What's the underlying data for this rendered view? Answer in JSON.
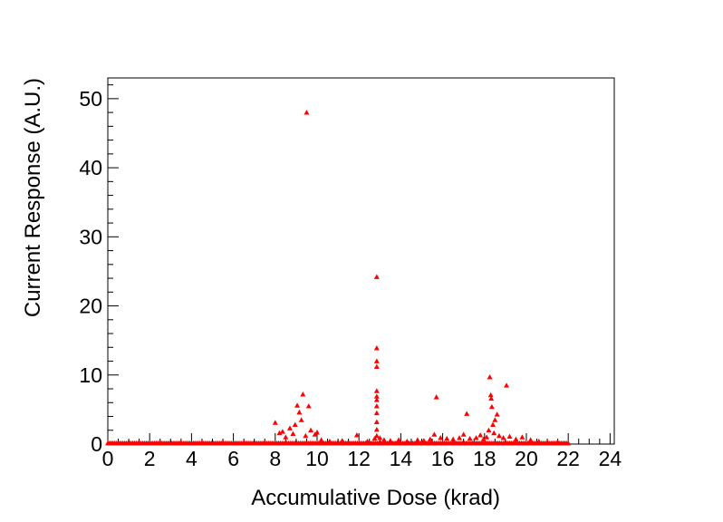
{
  "chart_data": {
    "type": "scatter",
    "title": "",
    "xlabel": "Accumulative Dose (krad)",
    "ylabel": "Current Response (A.U.)",
    "xlim": [
      0,
      24.2
    ],
    "ylim": [
      0,
      53
    ],
    "x_ticks": [
      "0",
      "2",
      "4",
      "6",
      "8",
      "10",
      "12",
      "14",
      "16",
      "18",
      "20",
      "22",
      "24"
    ],
    "y_ticks": [
      "0",
      "10",
      "20",
      "30",
      "40",
      "50"
    ],
    "grid": false,
    "legend": "none",
    "marker": "triangle",
    "marker_color": "#ff0000",
    "baseline": {
      "y": 0,
      "x_start": 0,
      "x_end": 22
    },
    "points": [
      {
        "x": 8.0,
        "y": 3.1
      },
      {
        "x": 8.2,
        "y": 1.6
      },
      {
        "x": 8.35,
        "y": 1.8
      },
      {
        "x": 8.5,
        "y": 1.0
      },
      {
        "x": 8.7,
        "y": 2.3
      },
      {
        "x": 8.85,
        "y": 1.5
      },
      {
        "x": 8.95,
        "y": 2.8
      },
      {
        "x": 9.05,
        "y": 5.6
      },
      {
        "x": 9.15,
        "y": 4.6
      },
      {
        "x": 9.25,
        "y": 3.5
      },
      {
        "x": 9.32,
        "y": 7.2
      },
      {
        "x": 9.45,
        "y": 1.2
      },
      {
        "x": 9.5,
        "y": 48.0
      },
      {
        "x": 9.6,
        "y": 5.5
      },
      {
        "x": 9.7,
        "y": 2.0
      },
      {
        "x": 9.9,
        "y": 1.4
      },
      {
        "x": 10.0,
        "y": 1.7
      },
      {
        "x": 10.2,
        "y": 0.6
      },
      {
        "x": 10.6,
        "y": 0.4
      },
      {
        "x": 11.2,
        "y": 0.5
      },
      {
        "x": 11.9,
        "y": 1.3
      },
      {
        "x": 12.4,
        "y": 0.4
      },
      {
        "x": 12.75,
        "y": 0.8
      },
      {
        "x": 12.85,
        "y": 24.2
      },
      {
        "x": 12.85,
        "y": 13.9
      },
      {
        "x": 12.85,
        "y": 12.0
      },
      {
        "x": 12.85,
        "y": 11.2
      },
      {
        "x": 12.85,
        "y": 7.7
      },
      {
        "x": 12.85,
        "y": 6.9
      },
      {
        "x": 12.85,
        "y": 6.4
      },
      {
        "x": 12.85,
        "y": 5.5
      },
      {
        "x": 12.85,
        "y": 4.5
      },
      {
        "x": 12.85,
        "y": 3.2
      },
      {
        "x": 12.85,
        "y": 2.1
      },
      {
        "x": 12.85,
        "y": 1.2
      },
      {
        "x": 13.0,
        "y": 0.9
      },
      {
        "x": 13.2,
        "y": 0.6
      },
      {
        "x": 13.5,
        "y": 0.5
      },
      {
        "x": 13.9,
        "y": 0.6
      },
      {
        "x": 14.3,
        "y": 0.4
      },
      {
        "x": 14.8,
        "y": 0.6
      },
      {
        "x": 15.1,
        "y": 0.5
      },
      {
        "x": 15.4,
        "y": 0.7
      },
      {
        "x": 15.6,
        "y": 1.4
      },
      {
        "x": 15.7,
        "y": 6.8
      },
      {
        "x": 15.9,
        "y": 0.9
      },
      {
        "x": 16.2,
        "y": 0.8
      },
      {
        "x": 16.5,
        "y": 0.7
      },
      {
        "x": 16.8,
        "y": 0.9
      },
      {
        "x": 17.0,
        "y": 1.4
      },
      {
        "x": 17.15,
        "y": 4.4
      },
      {
        "x": 17.3,
        "y": 0.8
      },
      {
        "x": 17.6,
        "y": 0.9
      },
      {
        "x": 17.8,
        "y": 1.3
      },
      {
        "x": 17.95,
        "y": 0.7
      },
      {
        "x": 18.1,
        "y": 1.0
      },
      {
        "x": 18.2,
        "y": 2.0
      },
      {
        "x": 18.25,
        "y": 9.7
      },
      {
        "x": 18.3,
        "y": 7.1
      },
      {
        "x": 18.32,
        "y": 6.6
      },
      {
        "x": 18.35,
        "y": 5.4
      },
      {
        "x": 18.4,
        "y": 2.8
      },
      {
        "x": 18.45,
        "y": 1.6
      },
      {
        "x": 18.5,
        "y": 3.5
      },
      {
        "x": 18.6,
        "y": 4.3
      },
      {
        "x": 18.7,
        "y": 1.2
      },
      {
        "x": 18.9,
        "y": 0.9
      },
      {
        "x": 19.05,
        "y": 8.5
      },
      {
        "x": 19.2,
        "y": 1.1
      },
      {
        "x": 19.5,
        "y": 0.7
      },
      {
        "x": 19.8,
        "y": 1.0
      },
      {
        "x": 20.2,
        "y": 0.6
      },
      {
        "x": 20.6,
        "y": 0.4
      },
      {
        "x": 21.0,
        "y": 0.3
      },
      {
        "x": 21.5,
        "y": 0.3
      }
    ]
  }
}
